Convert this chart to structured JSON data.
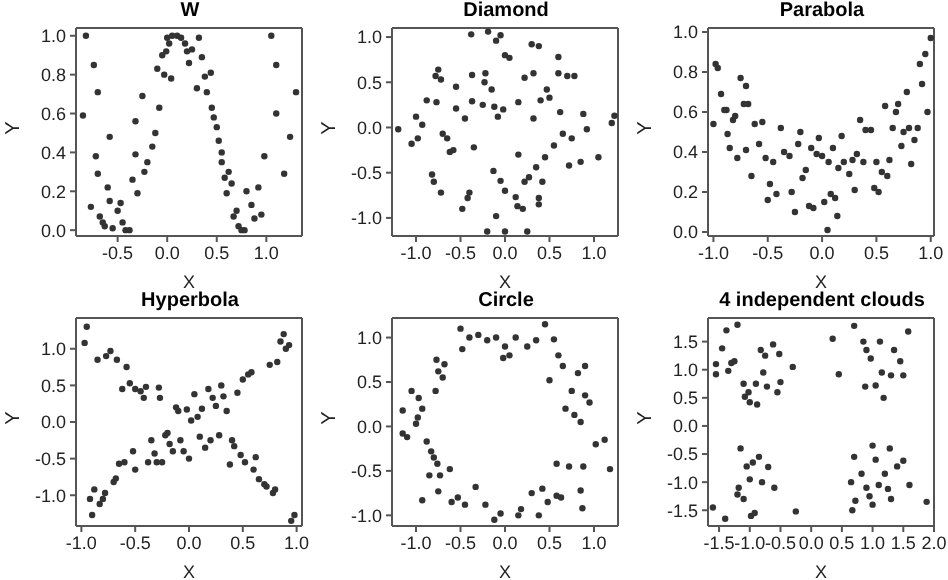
{
  "chart_data": [
    {
      "type": "scatter",
      "title": "W",
      "xlabel": "X",
      "ylabel": "Y",
      "color": "#333333",
      "marker": "circle",
      "xlim": [
        -0.92,
        1.36
      ],
      "ylim": [
        -0.03,
        1.04
      ],
      "xticks": [
        -0.5,
        {
          "value": 0,
          "label": "0.0"
        },
        0.5,
        {
          "value": 1,
          "label": "1.0"
        }
      ],
      "yticks": [
        {
          "value": 0,
          "label": "0.0"
        },
        0.2,
        0.4,
        0.6,
        0.8,
        {
          "value": 1,
          "label": "1.0"
        }
      ],
      "x": [
        -0.82,
        -0.74,
        -0.7,
        -0.85,
        -0.77,
        -0.72,
        -0.7,
        -0.68,
        -0.65,
        -0.63,
        -0.6,
        -0.58,
        -0.58,
        -0.55,
        -0.5,
        -0.47,
        -0.45,
        -0.42,
        -0.38,
        -0.35,
        -0.32,
        -0.3,
        -0.32,
        -0.25,
        -0.23,
        -0.2,
        -0.15,
        -0.12,
        -0.1,
        -0.08,
        -0.05,
        -0.03,
        -0.01,
        0,
        0.02,
        0.04,
        0.05,
        0.1,
        0.14,
        0.18,
        0.2,
        0.22,
        0.25,
        0.3,
        0.32,
        0.35,
        0.38,
        0.4,
        0.44,
        0.45,
        0.47,
        0.5,
        0.52,
        0.55,
        0.55,
        0.58,
        0.6,
        0.62,
        0.65,
        0.67,
        0.7,
        0.72,
        0.75,
        0.78,
        0.8,
        0.85,
        0.88,
        0.92,
        0.95,
        0.98,
        1.05,
        1.1,
        1.1,
        1.18,
        1.24,
        1.3
      ],
      "values": [
        1,
        0.85,
        0.71,
        0.59,
        0.12,
        0.38,
        0.29,
        0.07,
        0.04,
        0.02,
        0.22,
        0.48,
        0.15,
        0.01,
        0.1,
        0.14,
        0.04,
        0,
        0,
        0.26,
        0.39,
        0.19,
        0.56,
        0.69,
        0.3,
        0.35,
        0.43,
        0.5,
        0.83,
        0.63,
        0.9,
        0.8,
        0.92,
        0.99,
        0.96,
        0.78,
        1,
        1,
        0.99,
        0.96,
        0.92,
        0.86,
        0.93,
        0.73,
        0.99,
        0.89,
        0.79,
        0.71,
        0.81,
        0.63,
        0.58,
        0.53,
        0.46,
        0.4,
        0.35,
        0.27,
        0.19,
        0.3,
        0.24,
        0.07,
        0.1,
        0.02,
        0,
        0,
        0.2,
        0.13,
        0.06,
        0.22,
        0.08,
        0.38,
        1,
        0.85,
        0.6,
        0.29,
        0.48,
        0.71
      ]
    },
    {
      "type": "scatter",
      "title": "Diamond",
      "xlabel": "X",
      "ylabel": "Y",
      "color": "#333333",
      "marker": "circle",
      "xlim": [
        -1.27,
        1.27
      ],
      "ylim": [
        -1.2,
        1.1
      ],
      "xticks": [
        {
          "value": -1,
          "label": "-1.0"
        },
        -0.5,
        {
          "value": 0,
          "label": "0.0"
        },
        0.5,
        {
          "value": 1,
          "label": "1.0"
        }
      ],
      "yticks": [
        {
          "value": -1,
          "label": "-1.0"
        },
        -0.5,
        {
          "value": 0,
          "label": "0.0"
        },
        0.5,
        {
          "value": 1,
          "label": "1.0"
        }
      ],
      "x": [
        -1.2,
        -1.05,
        -1,
        -0.98,
        -0.93,
        -0.88,
        -0.82,
        -0.8,
        -0.78,
        -0.77,
        -0.75,
        -0.72,
        -0.72,
        -0.7,
        -0.65,
        -0.62,
        -0.58,
        -0.55,
        -0.55,
        -0.48,
        -0.45,
        -0.42,
        -0.4,
        -0.38,
        -0.37,
        -0.37,
        -0.35,
        -0.25,
        -0.23,
        -0.22,
        -0.2,
        -0.19,
        -0.15,
        -0.13,
        -0.12,
        -0.1,
        -0.1,
        -0.08,
        -0.05,
        -0.05,
        -0.02,
        0,
        0,
        0,
        0.05,
        0.12,
        0.14,
        0.15,
        0.15,
        0.2,
        0.22,
        0.22,
        0.25,
        0.27,
        0.3,
        0.32,
        0.32,
        0.35,
        0.38,
        0.38,
        0.38,
        0.4,
        0.42,
        0.45,
        0.47,
        0.5,
        0.55,
        0.6,
        0.6,
        0.62,
        0.65,
        0.7,
        0.72,
        0.75,
        0.78,
        0.85,
        0.88,
        0.92,
        1.05,
        1.2,
        1.23
      ],
      "values": [
        -0.02,
        -0.18,
        0.12,
        -0.12,
        0.03,
        0.3,
        -0.52,
        -0.6,
        0.57,
        0.28,
        0.64,
        0.53,
        -0.72,
        -0.07,
        -0.12,
        -0.27,
        -0.25,
        0.45,
        0.21,
        -0.9,
        0.1,
        -0.78,
        -0.72,
        1.03,
        0.29,
        0.58,
        -0.22,
        0.25,
        0.5,
        0.6,
        -1.15,
        1.06,
        0.42,
        -0.48,
        0.23,
        -0.98,
        0.96,
        0.12,
        1.02,
        -0.59,
        0.2,
        -1.15,
        0.8,
        -0.7,
        0.77,
        -0.77,
        -0.87,
        0.28,
        -0.3,
        -0.9,
        0.55,
        -0.6,
        -1.15,
        -0.55,
        0.92,
        0.6,
        0.1,
        -0.44,
        0.9,
        -0.78,
        -0.85,
        0.3,
        -0.6,
        -0.33,
        0.42,
        0.33,
        -0.2,
        0.78,
        0.6,
        0.17,
        -0.07,
        0.57,
        -0.42,
        -0.12,
        0.57,
        -0.38,
        0.15,
        -0.02,
        -0.33,
        0.05,
        0.13
      ]
    },
    {
      "type": "scatter",
      "title": "Parabola",
      "xlabel": "X",
      "ylabel": "Y",
      "color": "#333333",
      "marker": "circle",
      "xlim": [
        -1.05,
        1.03
      ],
      "ylim": [
        -0.02,
        1.02
      ],
      "xticks": [
        {
          "value": -1,
          "label": "-1.0"
        },
        -0.5,
        {
          "value": 0,
          "label": "0.0"
        },
        0.5,
        {
          "value": 1,
          "label": "1.0"
        }
      ],
      "yticks": [
        {
          "value": 0,
          "label": "0.0"
        },
        0.2,
        0.4,
        0.6,
        0.8,
        {
          "value": 1,
          "label": "1.0"
        }
      ],
      "x": [
        -1,
        -0.98,
        -0.96,
        -0.93,
        -0.9,
        -0.88,
        -0.87,
        -0.85,
        -0.82,
        -0.8,
        -0.78,
        -0.75,
        -0.72,
        -0.7,
        -0.7,
        -0.68,
        -0.65,
        -0.62,
        -0.58,
        -0.55,
        -0.52,
        -0.5,
        -0.48,
        -0.45,
        -0.42,
        -0.38,
        -0.35,
        -0.3,
        -0.28,
        -0.25,
        -0.22,
        -0.2,
        -0.18,
        -0.15,
        -0.12,
        -0.1,
        -0.08,
        -0.05,
        -0.03,
        0,
        0.02,
        0.05,
        0.06,
        0.08,
        0.1,
        0.12,
        0.14,
        0.15,
        0.18,
        0.2,
        0.25,
        0.28,
        0.3,
        0.32,
        0.35,
        0.38,
        0.4,
        0.45,
        0.48,
        0.5,
        0.52,
        0.55,
        0.58,
        0.6,
        0.62,
        0.65,
        0.68,
        0.7,
        0.73,
        0.75,
        0.78,
        0.8,
        0.82,
        0.85,
        0.88,
        0.9,
        0.92,
        0.95,
        0.97,
        1
      ],
      "values": [
        0.54,
        0.84,
        0.82,
        0.69,
        0.61,
        0.61,
        0.49,
        0.42,
        0.56,
        0.58,
        0.37,
        0.77,
        0.64,
        0.73,
        0.41,
        0.64,
        0.28,
        0.54,
        0.44,
        0.55,
        0.37,
        0.16,
        0.24,
        0.35,
        0.19,
        0.52,
        0.4,
        0.38,
        0.2,
        0.1,
        0.44,
        0.5,
        0.27,
        0.31,
        0.13,
        0.42,
        0.12,
        0.39,
        0.47,
        0.38,
        0.15,
        0.01,
        0.35,
        0.19,
        0.42,
        0.17,
        0.08,
        0.32,
        0.48,
        0.35,
        0.29,
        0.36,
        0.21,
        0.39,
        0.56,
        0.35,
        0.51,
        0.51,
        0.22,
        0.35,
        0.2,
        0.3,
        0.63,
        0.28,
        0.36,
        0.52,
        0.6,
        0.64,
        0.43,
        0.5,
        0.7,
        0.52,
        0.34,
        0.46,
        0.52,
        0.84,
        0.74,
        0.89,
        0.6,
        0.97
      ]
    },
    {
      "type": "scatter",
      "title": "Hyperbola",
      "xlabel": "X",
      "ylabel": "Y",
      "color": "#333333",
      "marker": "circle",
      "xlim": [
        -1.05,
        1.05
      ],
      "ylim": [
        -1.42,
        1.42
      ],
      "xticks": [
        {
          "value": -1,
          "label": "-1.0"
        },
        -0.5,
        {
          "value": 0,
          "label": "0.0"
        },
        0.5,
        {
          "value": 1,
          "label": "1.0"
        }
      ],
      "yticks": [
        {
          "value": -1,
          "label": "-1.0"
        },
        -0.5,
        {
          "value": 0,
          "label": "0.0"
        },
        0.5,
        {
          "value": 1,
          "label": "1.0"
        }
      ],
      "x": [
        -0.97,
        -0.95,
        -0.92,
        -0.9,
        -0.88,
        -0.85,
        -0.83,
        -0.8,
        -0.78,
        -0.77,
        -0.73,
        -0.7,
        -0.68,
        -0.67,
        -0.65,
        -0.6,
        -0.62,
        -0.58,
        -0.55,
        -0.52,
        -0.5,
        -0.5,
        -0.45,
        -0.42,
        -0.4,
        -0.38,
        -0.35,
        -0.32,
        -0.3,
        -0.28,
        -0.27,
        -0.25,
        -0.22,
        -0.2,
        -0.18,
        -0.15,
        -0.12,
        -0.1,
        -0.08,
        -0.05,
        -0.02,
        0,
        0.02,
        0.05,
        0.08,
        0.1,
        0.12,
        0.15,
        0.18,
        0.2,
        0.22,
        0.25,
        0.28,
        0.3,
        0.32,
        0.35,
        0.38,
        0.4,
        0.42,
        0.45,
        0.48,
        0.5,
        0.52,
        0.55,
        0.58,
        0.6,
        0.62,
        0.65,
        0.7,
        0.72,
        0.75,
        0.78,
        0.8,
        0.82,
        0.85,
        0.88,
        0.9,
        0.93,
        0.95,
        0.98
      ],
      "values": [
        1.08,
        1.3,
        -1.05,
        -1.27,
        -0.92,
        0.85,
        -1.12,
        -1.05,
        -0.97,
        0.9,
        0.97,
        -0.82,
        -0.77,
        0.85,
        -0.57,
        -0.55,
        0.45,
        0.75,
        0.53,
        -0.4,
        -0.65,
        0.45,
        0.42,
        0.33,
        0.48,
        -0.55,
        -0.25,
        -0.43,
        -0.55,
        0.47,
        0.33,
        -0.55,
        -0.18,
        -0.15,
        -0.3,
        -0.4,
        0.2,
        0.15,
        -0.25,
        -0.4,
        0.17,
        -0.5,
        0.02,
        0.38,
        0.07,
        -0.2,
        0.18,
        -0.35,
        0.45,
        -0.25,
        0.33,
        0.22,
        -0.18,
        0.5,
        0.35,
        0.15,
        -0.58,
        -0.25,
        -0.33,
        0.4,
        -0.45,
        0.58,
        -0.55,
        0.65,
        0.68,
        -0.65,
        -0.48,
        -0.78,
        -0.85,
        -0.88,
        0.78,
        -0.97,
        -0.92,
        0.82,
        1.1,
        1.2,
        1,
        1.05,
        -1.35,
        -1.27
      ]
    },
    {
      "type": "scatter",
      "title": "Circle",
      "xlabel": "X",
      "ylabel": "Y",
      "color": "#333333",
      "marker": "circle",
      "xlim": [
        -1.27,
        1.27
      ],
      "ylim": [
        -1.12,
        1.22
      ],
      "xticks": [
        {
          "value": -1,
          "label": "-1.0"
        },
        -0.5,
        {
          "value": 0,
          "label": "0.0"
        },
        0.5,
        {
          "value": 1,
          "label": "1.0"
        }
      ],
      "yticks": [
        {
          "value": -1,
          "label": "-1.0"
        },
        -0.5,
        {
          "value": 0,
          "label": "0.0"
        },
        0.5,
        {
          "value": 1,
          "label": "1.0"
        }
      ],
      "x": [
        -1.15,
        -1.15,
        -1.1,
        -1.05,
        -1,
        -0.98,
        -0.97,
        -0.93,
        -0.93,
        -0.88,
        -0.85,
        -0.83,
        -0.8,
        -0.78,
        -0.77,
        -0.76,
        -0.75,
        -0.75,
        -0.73,
        -0.7,
        -0.68,
        -0.62,
        -0.6,
        -0.53,
        -0.5,
        -0.48,
        -0.45,
        -0.4,
        -0.33,
        -0.3,
        -0.22,
        -0.2,
        -0.12,
        -0.1,
        -0.05,
        -0.02,
        0,
        0.05,
        0.15,
        0.12,
        0.18,
        0.25,
        0.3,
        0.35,
        0.38,
        0.42,
        0.45,
        0.48,
        0.5,
        0.55,
        0.58,
        0.58,
        0.6,
        0.63,
        0.65,
        0.68,
        0.72,
        0.75,
        0.78,
        0.82,
        0.85,
        0.85,
        0.87,
        0.88,
        0.9,
        0.9,
        0.95,
        1.02,
        1.12,
        1.18
      ],
      "values": [
        0.18,
        -0.08,
        -0.12,
        0.4,
        0.03,
        0.1,
        0.32,
        0.2,
        -0.83,
        -0.17,
        -0.55,
        -0.28,
        -0.35,
        0.4,
        0.75,
        -0.42,
        0.62,
        -0.73,
        -0.55,
        0.55,
        0.7,
        -0.48,
        -0.85,
        -0.8,
        1.1,
        0.87,
        -0.88,
        1,
        -0.68,
        1.03,
        -0.88,
        0.97,
        -1.05,
        1,
        -0.98,
        0.77,
        0.9,
        0.8,
        -1,
        1,
        -0.93,
        0.9,
        -0.75,
        0.97,
        -1,
        -0.7,
        1.15,
        -0.85,
        0.52,
        0.98,
        -0.78,
        -0.42,
        0.8,
        -0.8,
        0.68,
        0.2,
        -0.45,
        0.4,
        0.13,
        0.6,
        0.05,
        -0.72,
        -0.92,
        -0.45,
        0.35,
        0.68,
        0.27,
        -0.2,
        -0.15,
        -0.48
      ]
    },
    {
      "type": "scatter",
      "title": "4 independent clouds",
      "xlabel": "X",
      "ylabel": "Y",
      "color": "#333333",
      "marker": "circle",
      "xlim": [
        -1.68,
        2.0
      ],
      "ylim": [
        -1.78,
        1.92
      ],
      "xticks": [
        -1.5,
        {
          "value": -1,
          "label": "-1.0"
        },
        -0.5,
        {
          "value": 0,
          "label": "0.0"
        },
        0.5,
        {
          "value": 1,
          "label": "1.0"
        },
        1.5,
        {
          "value": 2,
          "label": "2.0"
        }
      ],
      "yticks": [
        -1.5,
        {
          "value": -1,
          "label": "-1.0"
        },
        -0.5,
        {
          "value": 0,
          "label": "0.0"
        },
        0.5,
        {
          "value": 1,
          "label": "1.0"
        },
        1.5
      ],
      "x": [
        -1.6,
        -1.55,
        -1.55,
        -1.45,
        -1.4,
        -1.38,
        -1.35,
        -1.3,
        -1.25,
        -1.2,
        -1.2,
        -1.18,
        -1.15,
        -1.1,
        -1.1,
        -1.08,
        -1.05,
        -1.02,
        -1,
        -1,
        -0.98,
        -0.95,
        -0.92,
        -0.9,
        -0.88,
        -0.85,
        -0.82,
        -0.8,
        -0.78,
        -0.75,
        -0.72,
        -0.7,
        -0.62,
        -0.6,
        -0.55,
        -0.52,
        -0.5,
        -0.3,
        -0.25,
        0.35,
        0.45,
        0.65,
        0.67,
        0.7,
        0.7,
        0.72,
        0.82,
        0.85,
        0.88,
        0.9,
        0.9,
        0.95,
        0.97,
        1,
        1,
        1.05,
        1.05,
        1.1,
        1.12,
        1.15,
        1.18,
        1.2,
        1.25,
        1.28,
        1.3,
        1.3,
        1.35,
        1.4,
        1.45,
        1.5,
        1.5,
        1.58,
        1.6,
        1.88
      ],
      "values": [
        -1.45,
        1.1,
        0.92,
        1.38,
        -1.65,
        1.7,
        0.98,
        1.12,
        1.15,
        1.8,
        -1.22,
        -1.1,
        -0.4,
        -1.3,
        0.75,
        0.52,
        -0.72,
        0.6,
        0.42,
        -0.95,
        -1.6,
        -0.65,
        -1.55,
        0.75,
        0.38,
        -0.55,
        1.35,
        -1,
        0.95,
        1.25,
        0.7,
        -0.73,
        1.45,
        -1.1,
        0.6,
        1.28,
        0.78,
        1.05,
        -1.52,
        1.55,
        0.92,
        -1,
        -1.5,
        1.78,
        -0.55,
        -1.33,
        -0.85,
        1.5,
        0.7,
        1.35,
        -1.1,
        -1.25,
        1.2,
        -0.35,
        -1.4,
        0.72,
        -0.6,
        -1.05,
        1.5,
        0.95,
        0.5,
        -0.85,
        -1.12,
        -0.4,
        0.9,
        -1.3,
        1.35,
        -0.72,
        1.15,
        -0.62,
        0.9,
        1.68,
        -1.05,
        -1.35
      ]
    }
  ]
}
